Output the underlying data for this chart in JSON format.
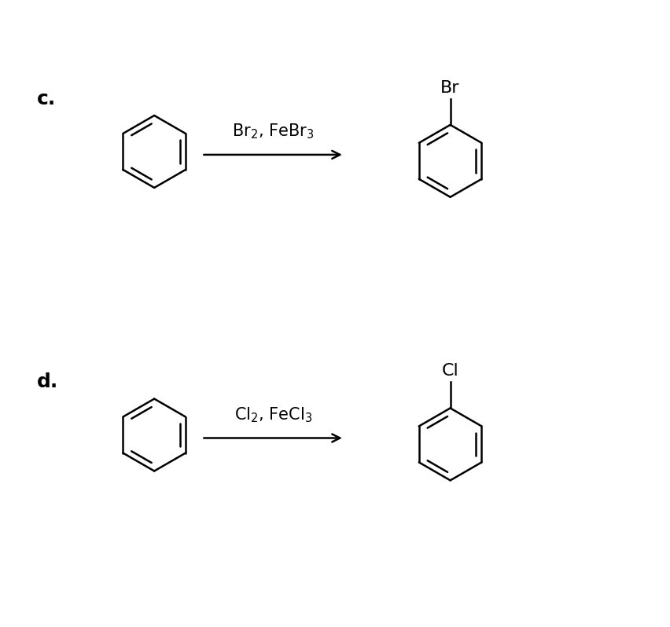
{
  "background_color": "#ffffff",
  "fig_width": 8.52,
  "fig_height": 7.98,
  "label_c": "c.",
  "label_d": "d.",
  "label_fontsize": 18,
  "reagent_c": "Br$_2$, FeBr$_3$",
  "reagent_d": "Cl$_2$, FeCl$_3$",
  "reagent_fontsize": 15,
  "halogen_c": "Br",
  "halogen_d": "Cl",
  "halogen_fontsize": 16,
  "line_color": "#000000",
  "line_width": 1.8
}
